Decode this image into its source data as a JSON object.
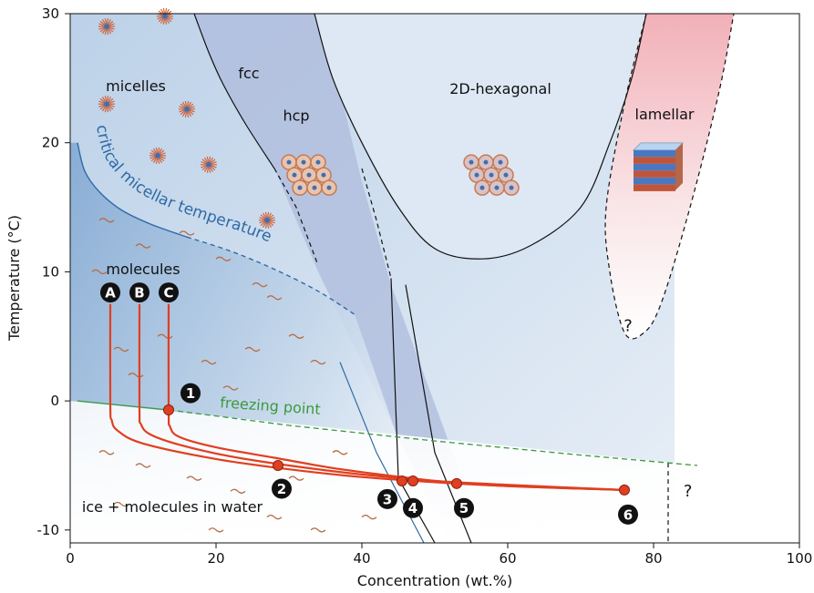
{
  "chart_data": {
    "type": "phase-diagram",
    "xlabel": "Concentration (wt.%)",
    "ylabel": "Temperature (°C)",
    "xlim": [
      0,
      100
    ],
    "ylim": [
      -11,
      30
    ],
    "xticks": [
      0,
      20,
      40,
      60,
      80,
      100
    ],
    "yticks": [
      30,
      20,
      10,
      0,
      -10
    ],
    "ytick_labels": [
      "30",
      "20",
      "10",
      "0",
      "-10"
    ],
    "xtick_labels": [
      "0",
      "20",
      "40",
      "60",
      "80",
      "100"
    ],
    "phases": [
      {
        "id": "micelles",
        "label": "micelles",
        "x": 9,
        "y": 24
      },
      {
        "id": "fcc",
        "label": "fcc",
        "x": 24.5,
        "y": 25
      },
      {
        "id": "hcp",
        "label": "hcp",
        "x": 31,
        "y": 21.7
      },
      {
        "id": "hex",
        "label": "2D-hexagonal",
        "x": 59,
        "y": 23.8
      },
      {
        "id": "lam",
        "label": "lamellar",
        "x": 81.5,
        "y": 21.8
      },
      {
        "id": "molecules",
        "label": "molecules",
        "x": 10,
        "y": 9.8
      },
      {
        "id": "ice",
        "label": "ice + molecules in water",
        "x": 14,
        "y": -8.6
      }
    ],
    "critical_micellar_temperature": {
      "label": "critical micellar temperature",
      "points": [
        [
          1,
          20
        ],
        [
          2,
          17.8
        ],
        [
          4,
          16.2
        ],
        [
          7,
          14.8
        ],
        [
          11,
          13.7
        ],
        [
          16,
          12.7
        ],
        [
          22,
          11.6
        ],
        [
          28,
          10.2
        ],
        [
          34,
          8.5
        ],
        [
          39,
          6.7
        ]
      ]
    },
    "freezing_point": {
      "label": "freezing point",
      "points": [
        [
          1,
          0
        ],
        [
          13.5,
          -0.7
        ],
        [
          30,
          -1.9
        ],
        [
          50,
          -3.1
        ],
        [
          70,
          -4.2
        ],
        [
          86,
          -5
        ]
      ]
    },
    "boundaries": {
      "fcc_left": [
        [
          17,
          30
        ],
        [
          19,
          27
        ],
        [
          21,
          24.5
        ],
        [
          24,
          21.5
        ],
        [
          28,
          18
        ]
      ],
      "hex": [
        [
          33.5,
          30
        ],
        [
          36,
          25
        ],
        [
          40,
          20
        ],
        [
          45,
          15
        ],
        [
          50,
          11.8
        ],
        [
          56.5,
          11
        ],
        [
          63,
          12
        ],
        [
          70,
          15
        ],
        [
          74,
          20
        ],
        [
          77,
          25
        ],
        [
          79,
          30
        ]
      ],
      "lam": [
        [
          79,
          30
        ],
        [
          76,
          23
        ],
        [
          73.5,
          15
        ],
        [
          74,
          10
        ],
        [
          76,
          5.3
        ],
        [
          78.5,
          5.2
        ],
        [
          81,
          7.5
        ],
        [
          85,
          15
        ],
        [
          89,
          24
        ],
        [
          91,
          30
        ]
      ],
      "vertical_82": [
        [
          82,
          -4.8
        ],
        [
          82,
          -11
        ]
      ],
      "mic_lower": [
        [
          0,
          -11
        ],
        [
          25,
          -9
        ],
        [
          45,
          -7.5
        ],
        [
          60,
          -8
        ],
        [
          80,
          -11
        ]
      ]
    },
    "paths": [
      {
        "label": "A",
        "x_start": 5.5,
        "y_start": 7.5,
        "points": [
          [
            5.5,
            7.5
          ],
          [
            5.5,
            -0.3
          ],
          [
            5.7,
            -1.5
          ],
          [
            6.5,
            -2.3
          ],
          [
            10,
            -3.3
          ],
          [
            20,
            -4.5
          ],
          [
            30,
            -5.3
          ],
          [
            40,
            -5.9
          ],
          [
            50,
            -6.3
          ],
          [
            60,
            -6.6
          ],
          [
            76,
            -6.9
          ]
        ]
      },
      {
        "label": "B",
        "x_start": 9.5,
        "y_start": 7.5,
        "points": [
          [
            9.5,
            7.5
          ],
          [
            9.5,
            -0.6
          ],
          [
            9.7,
            -1.8
          ],
          [
            11,
            -2.6
          ],
          [
            15,
            -3.4
          ],
          [
            22,
            -4.3
          ],
          [
            30,
            -5
          ],
          [
            40,
            -5.7
          ],
          [
            50,
            -6.2
          ],
          [
            60,
            -6.5
          ],
          [
            76,
            -6.9
          ]
        ]
      },
      {
        "label": "C",
        "x_start": 13.5,
        "y_start": 7.5,
        "points": [
          [
            13.5,
            7.5
          ],
          [
            13.5,
            -0.7
          ],
          [
            13.7,
            -2
          ],
          [
            15,
            -2.8
          ],
          [
            20,
            -3.6
          ],
          [
            28,
            -4.4
          ],
          [
            36,
            -5.2
          ],
          [
            44,
            -5.8
          ],
          [
            52,
            -6.3
          ],
          [
            60,
            -6.6
          ],
          [
            76,
            -6.9
          ]
        ]
      }
    ],
    "markers": [
      {
        "label": "1",
        "x": 13.5,
        "y": -0.7
      },
      {
        "label": "2",
        "x": 28.5,
        "y": -5
      },
      {
        "label": "3",
        "x": 45.5,
        "y": -6.2
      },
      {
        "label": "4",
        "x": 47,
        "y": -6.2
      },
      {
        "label": "5",
        "x": 53,
        "y": -6.4
      },
      {
        "label": "6",
        "x": 76,
        "y": -6.9
      }
    ],
    "question_marks": [
      "?",
      "?"
    ]
  }
}
